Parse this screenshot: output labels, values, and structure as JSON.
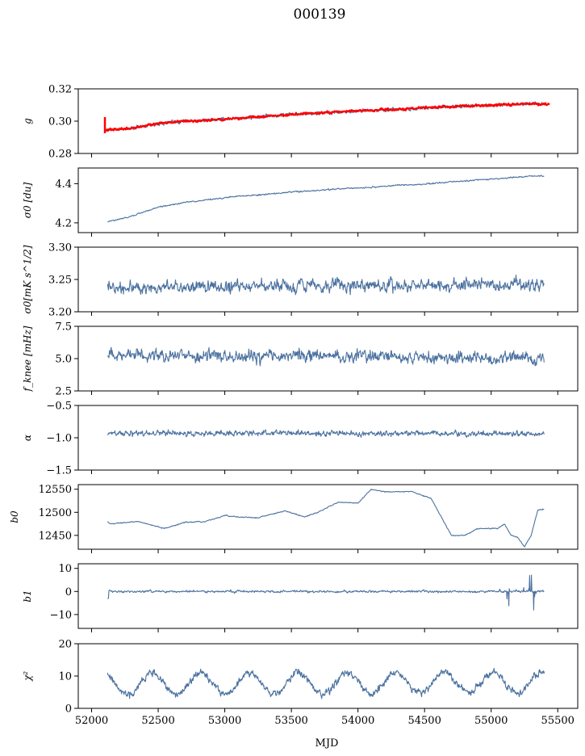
{
  "figure": {
    "title": "000139",
    "xlabel": "MJD",
    "series_color": "#4c72a0",
    "fit_color": "#ff0000"
  },
  "chart_data": [
    {
      "type": "line",
      "ylabel": "g",
      "xlim": [
        51900,
        55650
      ],
      "ylim": [
        0.28,
        0.32
      ],
      "yticks": [
        0.28,
        0.3,
        0.32
      ],
      "ytick_labels": [
        "0.28",
        "0.30",
        "0.32"
      ],
      "series": [
        {
          "kind": "trend",
          "x": [
            52100,
            52300,
            52500,
            52700,
            52900,
            53100,
            53300,
            53500,
            53700,
            53900,
            54100,
            54300,
            54500,
            54700,
            54900,
            55100,
            55300,
            55400
          ],
          "values": [
            0.2945,
            0.2955,
            0.2985,
            0.3,
            0.3008,
            0.3018,
            0.303,
            0.3042,
            0.305,
            0.306,
            0.3067,
            0.3073,
            0.3082,
            0.309,
            0.3097,
            0.3102,
            0.3108,
            0.311
          ],
          "noise": 0.0013,
          "style": "blue"
        },
        {
          "kind": "fit",
          "x": [
            52100,
            52300,
            52500,
            52700,
            52900,
            53100,
            53300,
            53500,
            53700,
            53900,
            54100,
            54300,
            54500,
            54700,
            54900,
            55100,
            55300,
            55440
          ],
          "values": [
            0.2945,
            0.2955,
            0.2985,
            0.3,
            0.3008,
            0.3018,
            0.303,
            0.3042,
            0.305,
            0.306,
            0.3067,
            0.3073,
            0.3082,
            0.309,
            0.3097,
            0.3102,
            0.3108,
            0.3105
          ],
          "noise": 0.0008,
          "spike": [
            0.2925,
            0.3025
          ],
          "style": "red"
        }
      ]
    },
    {
      "type": "line",
      "ylabel": "σ0 [du]",
      "xlim": [
        51900,
        55650
      ],
      "ylim": [
        4.15,
        4.48
      ],
      "yticks": [
        4.2,
        4.4
      ],
      "ytick_labels": [
        "4.2",
        "4.4"
      ],
      "series": [
        {
          "kind": "trend",
          "x": [
            52120,
            52300,
            52500,
            52700,
            52900,
            53100,
            53300,
            53500,
            53700,
            53900,
            54100,
            54300,
            54500,
            54700,
            54900,
            55100,
            55300,
            55400
          ],
          "values": [
            4.205,
            4.235,
            4.28,
            4.305,
            4.32,
            4.335,
            4.345,
            4.358,
            4.365,
            4.375,
            4.382,
            4.392,
            4.398,
            4.41,
            4.42,
            4.428,
            4.44,
            4.438
          ],
          "noise": 0.004,
          "style": "blue"
        }
      ]
    },
    {
      "type": "line",
      "ylabel": "σ0[mK s^1/2]",
      "xlim": [
        51900,
        55650
      ],
      "ylim": [
        3.2,
        3.3
      ],
      "yticks": [
        3.2,
        3.25,
        3.3
      ],
      "ytick_labels": [
        "3.20",
        "3.25",
        "3.30"
      ],
      "series": [
        {
          "kind": "trend",
          "x": [
            52120,
            55400
          ],
          "values": [
            3.238,
            3.242
          ],
          "noise": 0.011,
          "style": "blue"
        }
      ]
    },
    {
      "type": "line",
      "ylabel": "f_knee [mHz]",
      "xlim": [
        51900,
        55650
      ],
      "ylim": [
        2.5,
        7.5
      ],
      "yticks": [
        2.5,
        5.0,
        7.5
      ],
      "ytick_labels": [
        "2.5",
        "5.0",
        "7.5"
      ],
      "series": [
        {
          "kind": "trend",
          "x": [
            52120,
            55400
          ],
          "values": [
            5.3,
            5.0
          ],
          "noise": 0.55,
          "style": "blue"
        }
      ]
    },
    {
      "type": "line",
      "ylabel": "α",
      "xlim": [
        51900,
        55650
      ],
      "ylim": [
        -1.5,
        -0.5
      ],
      "yticks": [
        -1.5,
        -1.0,
        -0.5
      ],
      "ytick_labels": [
        "−1.5",
        "−1.0",
        "−0.5"
      ],
      "series": [
        {
          "kind": "trend",
          "x": [
            52120,
            55400
          ],
          "values": [
            -0.93,
            -0.94
          ],
          "noise": 0.05,
          "style": "blue"
        }
      ]
    },
    {
      "type": "line",
      "ylabel": "b0",
      "xlim": [
        51900,
        55650
      ],
      "ylim": [
        12420,
        12560
      ],
      "yticks": [
        12450,
        12500,
        12550
      ],
      "ytick_labels": [
        "12450",
        "12500",
        "12550"
      ],
      "series": [
        {
          "kind": "trend",
          "x": [
            52120,
            52140,
            52350,
            52550,
            52700,
            52850,
            53000,
            53100,
            53250,
            53450,
            53600,
            53700,
            53850,
            54000,
            54100,
            54200,
            54400,
            54550,
            54700,
            54800,
            54900,
            55050,
            55100,
            55150,
            55200,
            55250,
            55300,
            55350,
            55400
          ],
          "values": [
            12480,
            12475,
            12480,
            12465,
            12478,
            12480,
            12493,
            12490,
            12488,
            12503,
            12490,
            12500,
            12522,
            12520,
            12550,
            12545,
            12545,
            12530,
            12450,
            12450,
            12465,
            12465,
            12475,
            12450,
            12445,
            12425,
            12450,
            12505,
            12507
          ],
          "noise": 1.2,
          "style": "blue"
        }
      ]
    },
    {
      "type": "line",
      "ylabel": "b1",
      "xlim": [
        51900,
        55650
      ],
      "ylim": [
        -16,
        12
      ],
      "yticks": [
        -10,
        0,
        10
      ],
      "ytick_labels": [
        "−10",
        "0",
        "10"
      ],
      "series": [
        {
          "kind": "trend",
          "x": [
            52120,
            55400
          ],
          "values": [
            0.0,
            0.0
          ],
          "noise": 0.55,
          "start": -3,
          "burst_from": 55050,
          "burst_amp": 9,
          "style": "blue"
        }
      ]
    },
    {
      "type": "line",
      "ylabel": "χ²",
      "xlim": [
        51900,
        55650
      ],
      "ylim": [
        0,
        20
      ],
      "yticks": [
        0,
        10,
        20
      ],
      "ytick_labels": [
        "0",
        "10",
        "20"
      ],
      "xticks": [
        52000,
        52500,
        53000,
        53500,
        54000,
        54500,
        55000,
        55500
      ],
      "xtick_labels": [
        "52000",
        "52500",
        "53000",
        "53500",
        "54000",
        "54500",
        "55000",
        "55500"
      ],
      "series": [
        {
          "kind": "seasonal",
          "x": [
            52120,
            55400
          ],
          "values": [
            7.5,
            8.0
          ],
          "amp": 3.2,
          "period": 365.25,
          "noise": 1.3,
          "style": "blue"
        }
      ]
    }
  ]
}
